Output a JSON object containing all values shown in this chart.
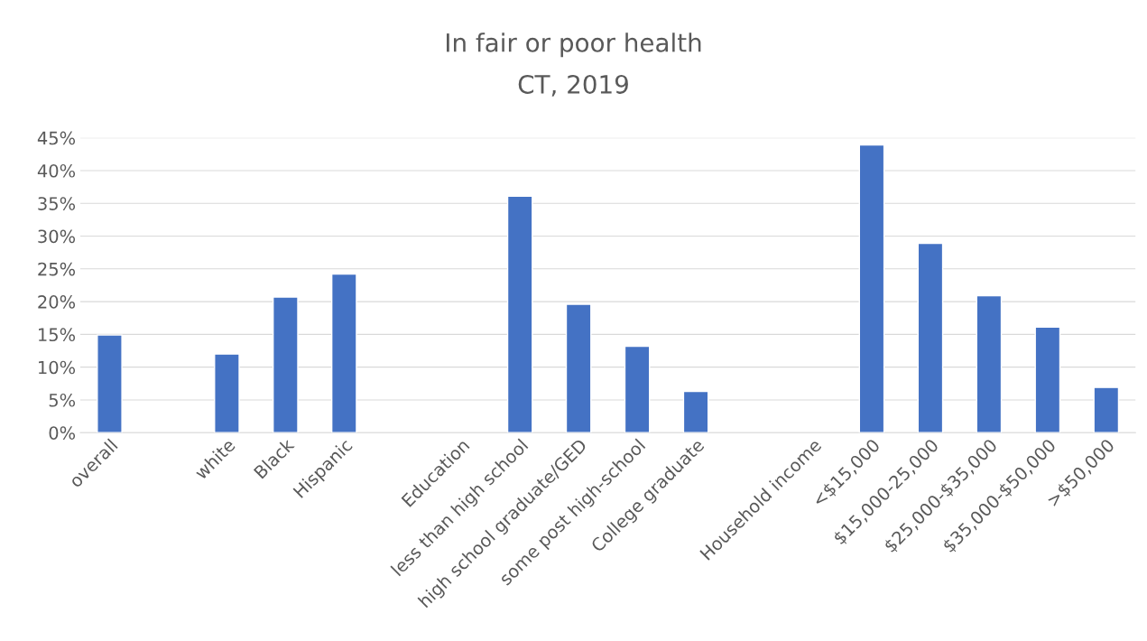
{
  "chart_data": {
    "type": "bar",
    "title": "In fair or poor health",
    "subtitle": "CT, 2019",
    "categories": [
      "overall",
      null,
      "white",
      "Black",
      "Hispanic",
      null,
      "Education",
      "less than high school",
      "high school graduate/GED",
      "some post high-school",
      "College graduate",
      null,
      "Household income",
      "<$15,000",
      "$15,000-25,000",
      "$25,000-$35,000",
      "$35,000-$50,000",
      ">$50,000"
    ],
    "values": [
      14.9,
      null,
      12.0,
      20.7,
      24.2,
      null,
      null,
      36.1,
      19.6,
      13.2,
      6.3,
      null,
      null,
      43.9,
      28.9,
      20.9,
      16.1,
      6.9
    ],
    "color": "#4472c4",
    "ylim": [
      0,
      45
    ],
    "yticks": [
      {
        "value": 0,
        "label": "0%"
      },
      {
        "value": 5,
        "label": "5%"
      },
      {
        "value": 10,
        "label": "10%"
      },
      {
        "value": 15,
        "label": "15%"
      },
      {
        "value": 20,
        "label": "20%"
      },
      {
        "value": 25,
        "label": "25%"
      },
      {
        "value": 30,
        "label": "30%"
      },
      {
        "value": 35,
        "label": "35%"
      },
      {
        "value": 40,
        "label": "40%"
      },
      {
        "value": 45,
        "label": "45%"
      }
    ],
    "grid": "y",
    "legend": false
  }
}
